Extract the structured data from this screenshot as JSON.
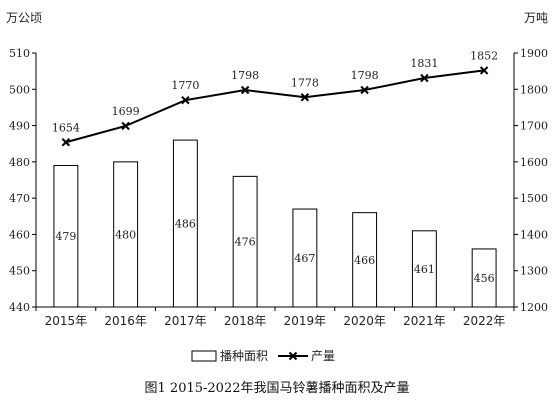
{
  "chart_data": {
    "type": "bar",
    "title": "",
    "caption": "图1 2015-2022年我国马铃薯播种面积及产量",
    "categories": [
      "2015年",
      "2016年",
      "2017年",
      "2018年",
      "2019年",
      "2020年",
      "2021年",
      "2022年"
    ],
    "y_left": {
      "unit": "万公顷",
      "ylim": [
        440,
        510
      ],
      "ticks": [
        440,
        450,
        460,
        470,
        480,
        490,
        500,
        510
      ]
    },
    "y_right": {
      "unit": "万吨",
      "ylim": [
        1200,
        1900
      ],
      "ticks": [
        1200,
        1300,
        1400,
        1500,
        1600,
        1700,
        1800,
        1900
      ]
    },
    "series": [
      {
        "name": "播种面积",
        "kind": "bar",
        "axis": "left",
        "values": [
          479,
          480,
          486,
          476,
          467,
          466,
          461,
          456
        ]
      },
      {
        "name": "产量",
        "kind": "line",
        "axis": "right",
        "marker": "x",
        "values": [
          1654,
          1699,
          1770,
          1798,
          1778,
          1798,
          1831,
          1852
        ]
      }
    ],
    "grid": false,
    "legend": "bottom"
  },
  "colors": {
    "bar_fill": "#ffffff",
    "stroke": "#000000"
  }
}
